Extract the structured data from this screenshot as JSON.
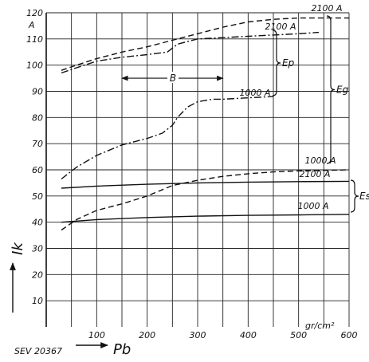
{
  "chart_data": {
    "type": "line",
    "xlabel": "Pb",
    "xunit": "gr/cm²",
    "ylabel": "Ik",
    "yunit": "A",
    "xlim": [
      0,
      600
    ],
    "ylim": [
      0,
      120
    ],
    "x_ticks": [
      100,
      200,
      300,
      400,
      500,
      600
    ],
    "y_ticks": [
      10,
      20,
      30,
      40,
      50,
      60,
      70,
      80,
      90,
      100,
      110,
      120
    ],
    "grid": true,
    "figure_id": "SEV 20367",
    "series": [
      {
        "name": "2100 A",
        "group": "Eg",
        "style": "dashed",
        "x": [
          30,
          60,
          100,
          150,
          200,
          250,
          300,
          350,
          400,
          450,
          500,
          550,
          600
        ],
        "y": [
          98,
          100,
          102.5,
          105,
          107,
          109.5,
          112,
          114.5,
          116.5,
          117.5,
          118,
          118,
          118
        ]
      },
      {
        "name": "2100 A",
        "group": "Ep",
        "style": "dash-dot",
        "x": [
          30,
          60,
          100,
          150,
          200,
          240,
          260,
          280,
          300,
          350,
          400,
          450,
          500,
          540
        ],
        "y": [
          97,
          99,
          101.5,
          103,
          104,
          105,
          108,
          109,
          110,
          110.5,
          111,
          111.5,
          112,
          112.5
        ]
      },
      {
        "name": "1000 A",
        "group": "Ep",
        "style": "dash-dot",
        "x": [
          30,
          60,
          100,
          150,
          200,
          230,
          250,
          260,
          280,
          300,
          330,
          350,
          400,
          450
        ],
        "y": [
          56.5,
          61,
          65.5,
          69.5,
          72,
          74,
          77,
          80,
          84,
          86,
          87,
          87,
          87.5,
          88
        ]
      },
      {
        "name": "1000 A",
        "group": "Eg",
        "style": "dashed",
        "x": [
          30,
          60,
          100,
          150,
          200,
          250,
          300,
          350,
          400,
          450,
          500,
          550,
          600
        ],
        "y": [
          37,
          41,
          44.5,
          47,
          50,
          54,
          56,
          57.5,
          58.5,
          59.2,
          59.6,
          59.8,
          60
        ]
      },
      {
        "name": "2100 A",
        "group": "Es",
        "style": "solid",
        "x": [
          30,
          100,
          200,
          300,
          400,
          500,
          600
        ],
        "y": [
          53,
          53.8,
          54.5,
          55,
          55.3,
          55.5,
          55.6
        ]
      },
      {
        "name": "1000 A",
        "group": "Es",
        "style": "solid",
        "x": [
          30,
          100,
          200,
          300,
          400,
          500,
          600
        ],
        "y": [
          40,
          41,
          41.8,
          42.3,
          42.6,
          42.8,
          43
        ]
      }
    ],
    "annotations": [
      {
        "text": "B",
        "x_from": 150,
        "x_to": 350,
        "y": 95
      },
      {
        "text": "Ep",
        "brace": "right"
      },
      {
        "text": "Eg",
        "brace": "right"
      },
      {
        "text": "Es",
        "brace": "right"
      }
    ]
  }
}
